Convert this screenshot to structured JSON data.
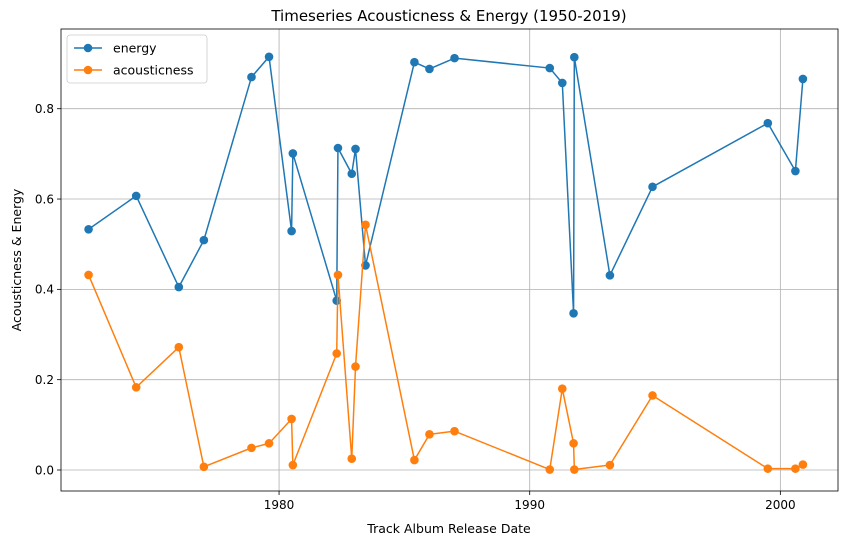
{
  "chart_data": {
    "type": "line",
    "title": "Timeseries Acousticness & Energy (1950-2019)",
    "xlabel": "Track Album Release Date",
    "ylabel": "Acousticness & Energy",
    "xlim": [
      1971.3,
      2002.3
    ],
    "ylim": [
      -0.0465,
      0.9765
    ],
    "xticks": [
      1980,
      1990,
      2000
    ],
    "xtick_labels": [
      "1980",
      "1990",
      "2000"
    ],
    "yticks": [
      0.0,
      0.2,
      0.4,
      0.6,
      0.8
    ],
    "ytick_labels": [
      "0.0",
      "0.2",
      "0.4",
      "0.6",
      "0.8"
    ],
    "grid": true,
    "legend": "top-left",
    "x": [
      1972.4,
      1974.3,
      1976.0,
      1977.0,
      1978.9,
      1979.6,
      1980.5,
      1980.55,
      1982.3,
      1982.35,
      1982.9,
      1983.05,
      1983.45,
      1985.4,
      1986.0,
      1987.0,
      1990.8,
      1991.3,
      1991.75,
      1991.78,
      1993.2,
      1994.9,
      1999.5,
      2000.6,
      2000.9
    ],
    "series": [
      {
        "name": "energy",
        "color": "#1f77b4",
        "values": [
          0.533,
          0.607,
          0.405,
          0.509,
          0.87,
          0.915,
          0.529,
          0.701,
          0.375,
          0.713,
          0.656,
          0.711,
          0.453,
          0.903,
          0.888,
          0.912,
          0.89,
          0.857,
          0.347,
          0.914,
          0.431,
          0.627,
          0.768,
          0.662,
          0.866
        ]
      },
      {
        "name": "acousticness",
        "color": "#ff7f0e",
        "values": [
          0.432,
          0.183,
          0.272,
          0.007,
          0.049,
          0.059,
          0.113,
          0.011,
          0.258,
          0.432,
          0.025,
          0.229,
          0.543,
          0.022,
          0.079,
          0.086,
          0.001,
          0.18,
          0.059,
          0.001,
          0.011,
          0.165,
          0.003,
          0.003,
          0.012
        ]
      }
    ]
  }
}
